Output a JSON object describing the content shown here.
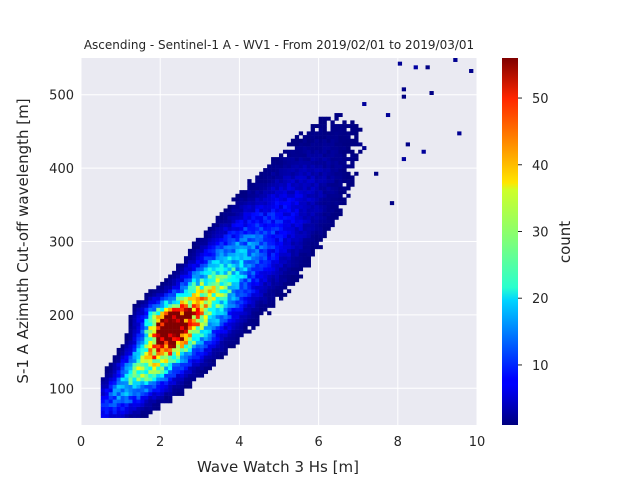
{
  "chart_data": {
    "type": "heatmap",
    "title": "Ascending - Sentinel-1 A - WV1 - From 2019/02/01 to 2019/03/01",
    "xlabel": "Wave Watch 3 Hs [m]",
    "ylabel": "S-1 A Azimuth Cut-off wavelength [m]",
    "xlim": [
      0,
      10
    ],
    "ylim": [
      50,
      550
    ],
    "x_ticks": [
      0,
      2,
      4,
      6,
      8,
      10
    ],
    "x_tick_labels": [
      "0",
      "2",
      "4",
      "6",
      "8",
      "10"
    ],
    "y_ticks": [
      100,
      200,
      300,
      400,
      500
    ],
    "y_tick_labels": [
      "100",
      "200",
      "300",
      "400",
      "500"
    ],
    "grid": true,
    "colormap": "jet",
    "colorbar": {
      "label": "count",
      "range": [
        1,
        56
      ],
      "ticks": [
        10,
        20,
        30,
        40,
        50
      ],
      "tick_labels": [
        "10",
        "20",
        "30",
        "40",
        "50"
      ]
    },
    "bin_width_x": 0.1,
    "bin_height_y": 5,
    "density_summary": {
      "peak_hs": 2.1,
      "peak_cutoff": 185,
      "peak_count": 56,
      "trend": "cut-off wavelength increases roughly linearly with Hs, from about 100 m at Hs 1 m to about 350 m at Hs 5.5 m"
    },
    "colors": {
      "plot_background": "#eaeaf2",
      "grid": "#ffffff",
      "text": "#262626"
    }
  }
}
